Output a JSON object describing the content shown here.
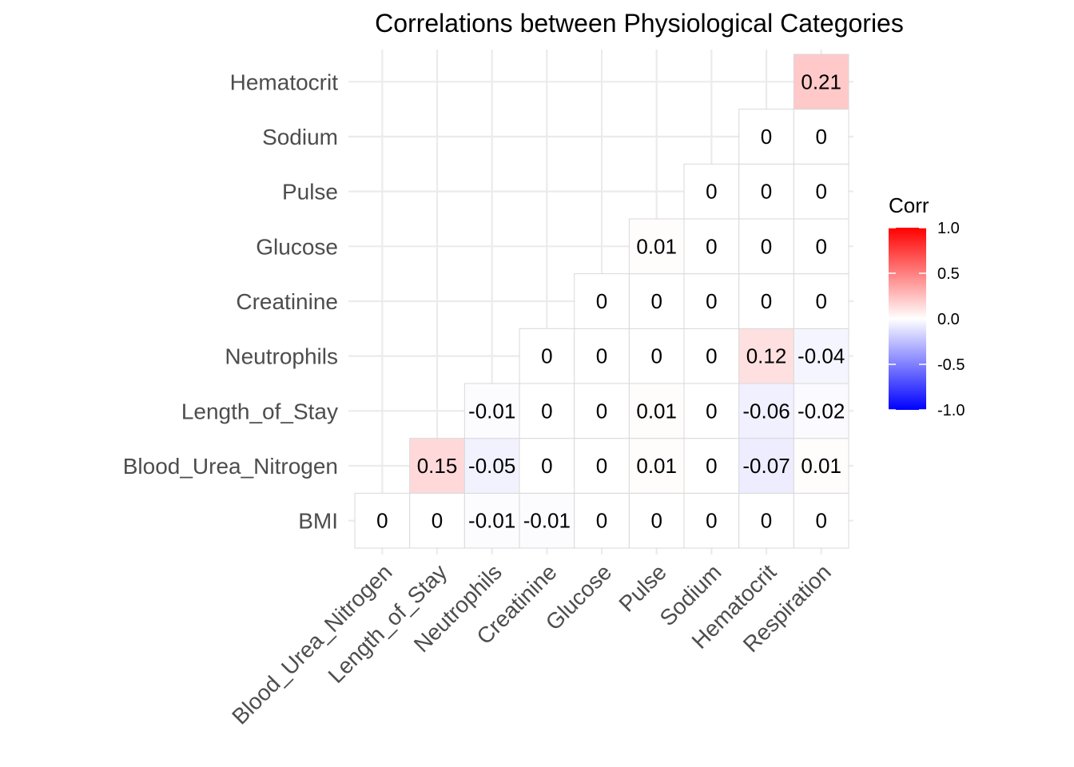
{
  "chart_data": {
    "type": "heatmap",
    "title": "Correlations between Physiological Categories",
    "x_categories": [
      "Blood_Urea_Nitrogen",
      "Length_of_Stay",
      "Neutrophils",
      "Creatinine",
      "Glucose",
      "Pulse",
      "Sodium",
      "Hematocrit",
      "Respiration"
    ],
    "y_categories": [
      "BMI",
      "Blood_Urea_Nitrogen",
      "Length_of_Stay",
      "Neutrophils",
      "Creatinine",
      "Glucose",
      "Pulse",
      "Sodium",
      "Hematocrit"
    ],
    "cells": [
      {
        "x": "Blood_Urea_Nitrogen",
        "y": "BMI",
        "value": 0,
        "label": "0"
      },
      {
        "x": "Length_of_Stay",
        "y": "BMI",
        "value": 0,
        "label": "0"
      },
      {
        "x": "Neutrophils",
        "y": "BMI",
        "value": -0.01,
        "label": "-0.01"
      },
      {
        "x": "Creatinine",
        "y": "BMI",
        "value": -0.01,
        "label": "-0.01"
      },
      {
        "x": "Glucose",
        "y": "BMI",
        "value": 0,
        "label": "0"
      },
      {
        "x": "Pulse",
        "y": "BMI",
        "value": 0,
        "label": "0"
      },
      {
        "x": "Sodium",
        "y": "BMI",
        "value": 0,
        "label": "0"
      },
      {
        "x": "Hematocrit",
        "y": "BMI",
        "value": 0,
        "label": "0"
      },
      {
        "x": "Respiration",
        "y": "BMI",
        "value": 0,
        "label": "0"
      },
      {
        "x": "Length_of_Stay",
        "y": "Blood_Urea_Nitrogen",
        "value": 0.15,
        "label": "0.15"
      },
      {
        "x": "Neutrophils",
        "y": "Blood_Urea_Nitrogen",
        "value": -0.05,
        "label": "-0.05"
      },
      {
        "x": "Creatinine",
        "y": "Blood_Urea_Nitrogen",
        "value": 0,
        "label": "0"
      },
      {
        "x": "Glucose",
        "y": "Blood_Urea_Nitrogen",
        "value": 0,
        "label": "0"
      },
      {
        "x": "Pulse",
        "y": "Blood_Urea_Nitrogen",
        "value": 0.01,
        "label": "0.01"
      },
      {
        "x": "Sodium",
        "y": "Blood_Urea_Nitrogen",
        "value": 0,
        "label": "0"
      },
      {
        "x": "Hematocrit",
        "y": "Blood_Urea_Nitrogen",
        "value": -0.07,
        "label": "-0.07"
      },
      {
        "x": "Respiration",
        "y": "Blood_Urea_Nitrogen",
        "value": 0.01,
        "label": "0.01"
      },
      {
        "x": "Neutrophils",
        "y": "Length_of_Stay",
        "value": -0.01,
        "label": "-0.01"
      },
      {
        "x": "Creatinine",
        "y": "Length_of_Stay",
        "value": 0,
        "label": "0"
      },
      {
        "x": "Glucose",
        "y": "Length_of_Stay",
        "value": 0,
        "label": "0"
      },
      {
        "x": "Pulse",
        "y": "Length_of_Stay",
        "value": 0.01,
        "label": "0.01"
      },
      {
        "x": "Sodium",
        "y": "Length_of_Stay",
        "value": 0,
        "label": "0"
      },
      {
        "x": "Hematocrit",
        "y": "Length_of_Stay",
        "value": -0.06,
        "label": "-0.06"
      },
      {
        "x": "Respiration",
        "y": "Length_of_Stay",
        "value": -0.02,
        "label": "-0.02"
      },
      {
        "x": "Creatinine",
        "y": "Neutrophils",
        "value": 0,
        "label": "0"
      },
      {
        "x": "Glucose",
        "y": "Neutrophils",
        "value": 0,
        "label": "0"
      },
      {
        "x": "Pulse",
        "y": "Neutrophils",
        "value": 0,
        "label": "0"
      },
      {
        "x": "Sodium",
        "y": "Neutrophils",
        "value": 0,
        "label": "0"
      },
      {
        "x": "Hematocrit",
        "y": "Neutrophils",
        "value": 0.12,
        "label": "0.12"
      },
      {
        "x": "Respiration",
        "y": "Neutrophils",
        "value": -0.04,
        "label": "-0.04"
      },
      {
        "x": "Glucose",
        "y": "Creatinine",
        "value": 0,
        "label": "0"
      },
      {
        "x": "Pulse",
        "y": "Creatinine",
        "value": 0,
        "label": "0"
      },
      {
        "x": "Sodium",
        "y": "Creatinine",
        "value": 0,
        "label": "0"
      },
      {
        "x": "Hematocrit",
        "y": "Creatinine",
        "value": 0,
        "label": "0"
      },
      {
        "x": "Respiration",
        "y": "Creatinine",
        "value": 0,
        "label": "0"
      },
      {
        "x": "Pulse",
        "y": "Glucose",
        "value": 0.01,
        "label": "0.01"
      },
      {
        "x": "Sodium",
        "y": "Glucose",
        "value": 0,
        "label": "0"
      },
      {
        "x": "Hematocrit",
        "y": "Glucose",
        "value": 0,
        "label": "0"
      },
      {
        "x": "Respiration",
        "y": "Glucose",
        "value": 0,
        "label": "0"
      },
      {
        "x": "Sodium",
        "y": "Pulse",
        "value": 0,
        "label": "0"
      },
      {
        "x": "Hematocrit",
        "y": "Pulse",
        "value": 0,
        "label": "0"
      },
      {
        "x": "Respiration",
        "y": "Pulse",
        "value": 0,
        "label": "0"
      },
      {
        "x": "Hematocrit",
        "y": "Sodium",
        "value": 0,
        "label": "0"
      },
      {
        "x": "Respiration",
        "y": "Sodium",
        "value": 0,
        "label": "0"
      },
      {
        "x": "Respiration",
        "y": "Hematocrit",
        "value": 0.21,
        "label": "0.21"
      }
    ],
    "legend": {
      "title": "Corr",
      "position": "right",
      "range": [
        -1,
        1
      ],
      "ticks": [
        1.0,
        0.5,
        0.0,
        -0.5,
        -1.0
      ],
      "tick_labels": [
        "1.0",
        "0.5",
        "0.0",
        "-0.5",
        "-1.0"
      ],
      "colors": {
        "low": "#0000ff",
        "mid": "#ffffff",
        "high": "#ff0000"
      }
    },
    "grid": true
  }
}
